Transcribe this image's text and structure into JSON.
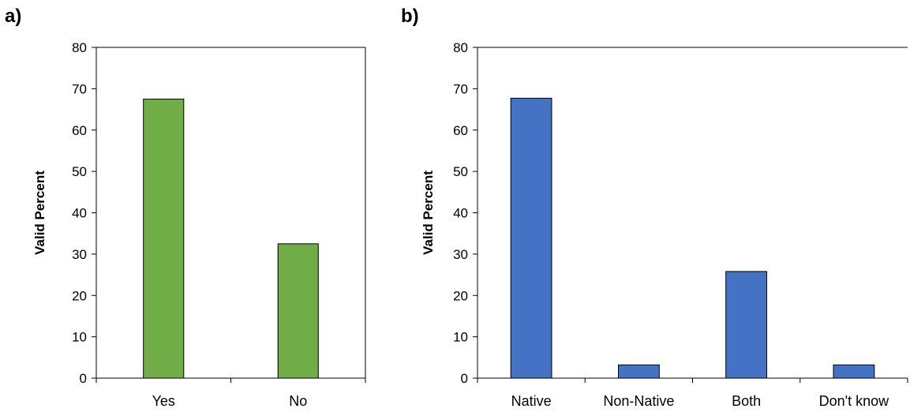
{
  "chart_data": [
    {
      "type": "bar",
      "panel_label": "a)",
      "categories": [
        "Yes",
        "No"
      ],
      "values": [
        67.5,
        32.5
      ],
      "ylabel": "Valid Percent",
      "xlabel": "",
      "ylim": [
        0,
        80
      ],
      "yticks": [
        0,
        10,
        20,
        30,
        40,
        50,
        60,
        70,
        80
      ],
      "bar_color": "#70ad47",
      "grid": false
    },
    {
      "type": "bar",
      "panel_label": "b)",
      "categories": [
        "Native",
        "Non-Native",
        "Both",
        "Don't know"
      ],
      "values": [
        67.7,
        3.2,
        25.8,
        3.2
      ],
      "ylabel": "Valid Percent",
      "xlabel": "",
      "ylim": [
        0,
        80
      ],
      "yticks": [
        0,
        10,
        20,
        30,
        40,
        50,
        60,
        70,
        80
      ],
      "bar_color": "#4472c4",
      "grid": false
    }
  ]
}
